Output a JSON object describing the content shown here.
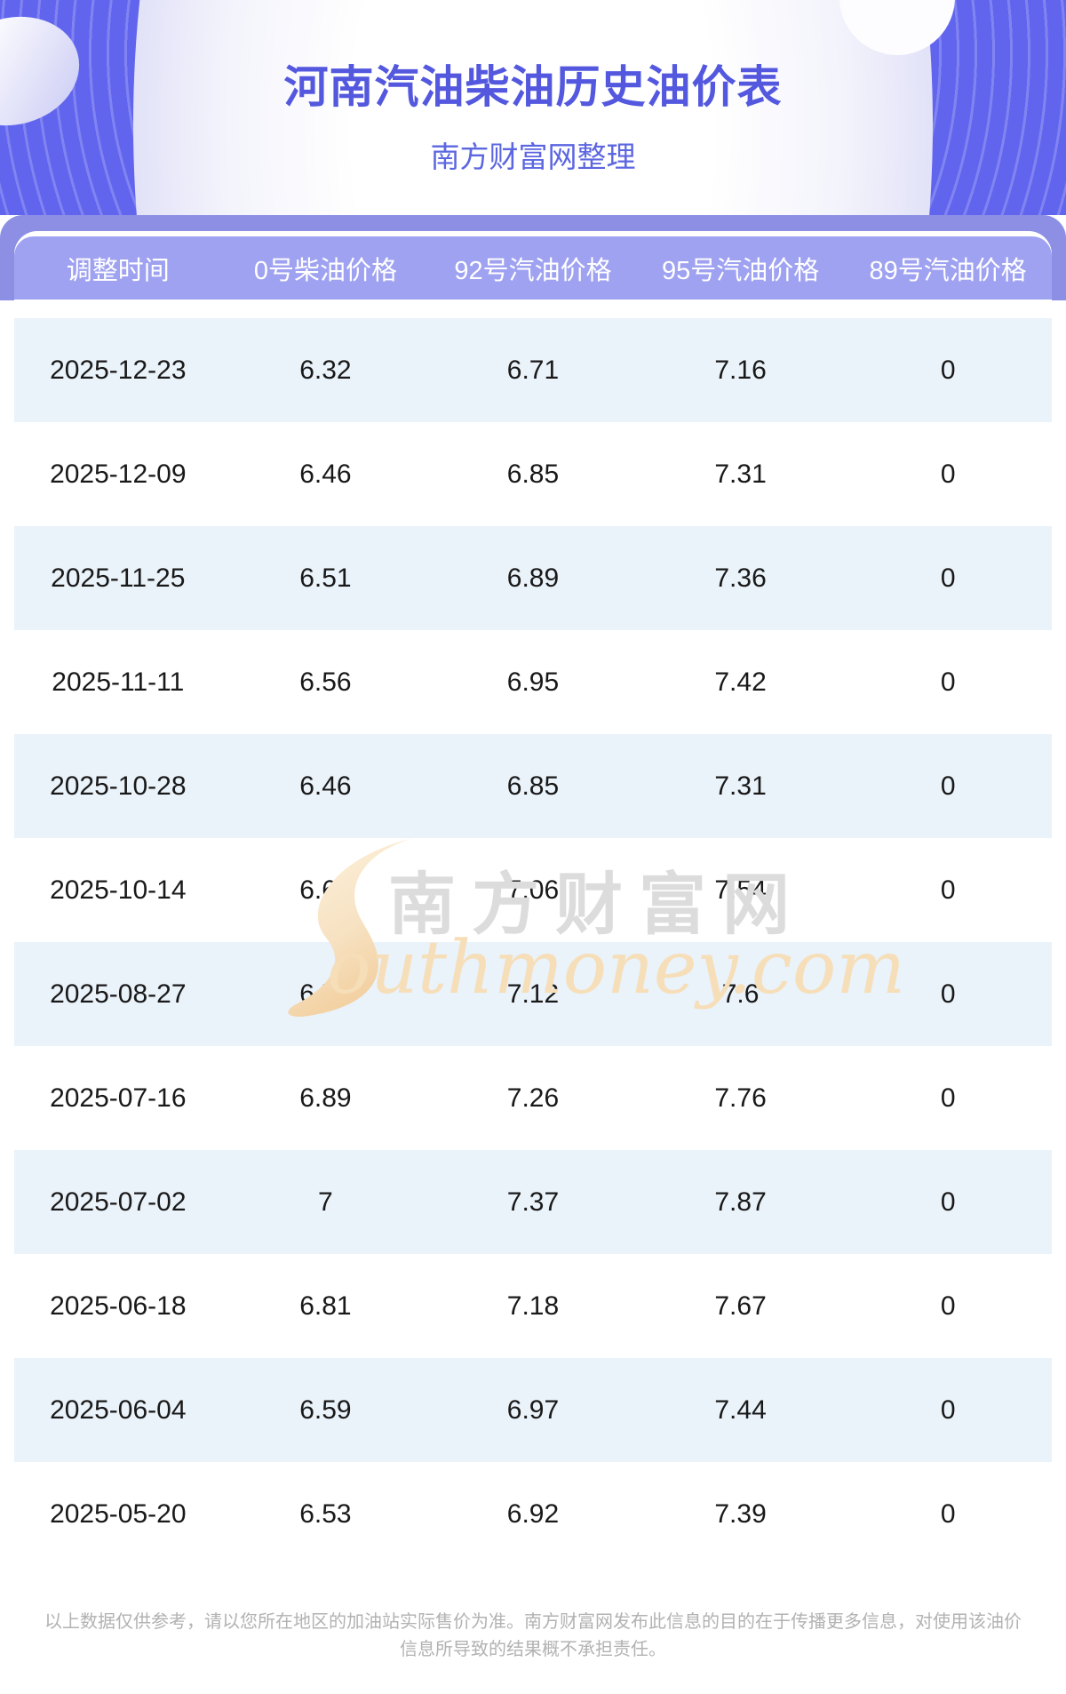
{
  "page": {
    "title": "河南汽油柴油历史油价表",
    "subtitle": "南方财富网整理",
    "footer_disclaimer": "以上数据仅供参考，请以您所在地区的加油站实际售价为准。南方财富网发布此信息的目的在于传播更多信息，对使用该油价信息所导致的结果概不承担责任。"
  },
  "watermark": {
    "cn_text": "南方财富网",
    "en_text": "outhmoney.com",
    "flame_icon": "flame-s-icon"
  },
  "table": {
    "columns": [
      "调整时间",
      "0号柴油价格",
      "92号汽油价格",
      "95号汽油价格",
      "89号汽油价格"
    ],
    "rows": [
      [
        "2025-12-23",
        "6.32",
        "6.71",
        "7.16",
        "0"
      ],
      [
        "2025-12-09",
        "6.46",
        "6.85",
        "7.31",
        "0"
      ],
      [
        "2025-11-25",
        "6.51",
        "6.89",
        "7.36",
        "0"
      ],
      [
        "2025-11-11",
        "6.56",
        "6.95",
        "7.42",
        "0"
      ],
      [
        "2025-10-28",
        "6.46",
        "6.85",
        "7.31",
        "0"
      ],
      [
        "2025-10-14",
        "6.68",
        "7.06",
        "7.54",
        "0"
      ],
      [
        "2025-08-27",
        "6.74",
        "7.12",
        "7.6",
        "0"
      ],
      [
        "2025-07-16",
        "6.89",
        "7.26",
        "7.76",
        "0"
      ],
      [
        "2025-07-02",
        "7",
        "7.37",
        "7.87",
        "0"
      ],
      [
        "2025-06-18",
        "6.81",
        "7.18",
        "7.67",
        "0"
      ],
      [
        "2025-06-04",
        "6.59",
        "6.97",
        "7.44",
        "0"
      ],
      [
        "2025-05-20",
        "6.53",
        "6.92",
        "7.39",
        "0"
      ]
    ]
  },
  "colors": {
    "header_background": "#6165ee",
    "header_stripe": "#7579f1",
    "title_text": "#5358de",
    "subtitle_text": "#5c66e0",
    "band_purple": "#8c8fe4",
    "table_header_purple": "#9fa2f0",
    "row_alt_blue": "#eaf2fa",
    "row_white": "#ffffff",
    "cell_text": "#191919",
    "watermark_gray": "#dcdcdc",
    "watermark_orange": "#f6deb8",
    "footer_text": "#b2b2b2"
  }
}
